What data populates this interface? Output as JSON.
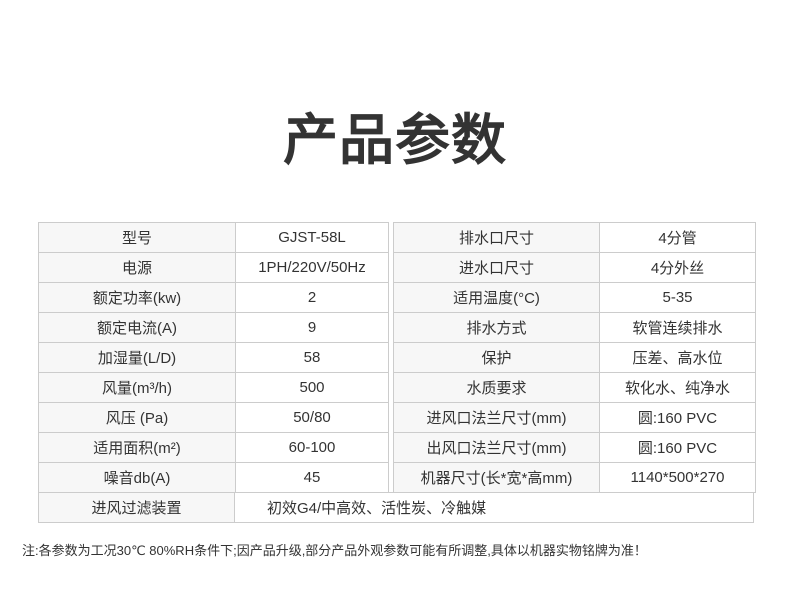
{
  "page": {
    "title": "产品参数",
    "note": "注:各参数为工况30℃  80%RH条件下;因产品升级,部分产品外观参数可能有所调整,具体以机器实物铭牌为准！"
  },
  "colors": {
    "border": "#cccccc",
    "label_cell_bg": "#f7f7f7",
    "text": "#333333"
  },
  "spec_table": {
    "left_rows": [
      {
        "label": "型号",
        "value": "GJST-58L"
      },
      {
        "label": "电源",
        "value": "1PH/220V/50Hz"
      },
      {
        "label": "额定功率(kw)",
        "value": "2"
      },
      {
        "label": "额定电流(A)",
        "value": "9"
      },
      {
        "label": "加湿量(L/D)",
        "value": "58"
      },
      {
        "label": "风量(m³/h)",
        "value": "500"
      },
      {
        "label": "风压 (Pa)",
        "value": "50/80"
      },
      {
        "label": "适用面积(m²)",
        "value": "60-100"
      },
      {
        "label": "噪音db(A)",
        "value": "45"
      }
    ],
    "right_rows": [
      {
        "label": "排水口尺寸",
        "value": "4分管"
      },
      {
        "label": "进水口尺寸",
        "value": "4分外丝"
      },
      {
        "label": "适用温度(°C)",
        "value": "5-35"
      },
      {
        "label": "排水方式",
        "value": "软管连续排水"
      },
      {
        "label": "保护",
        "value": "压差、高水位"
      },
      {
        "label": "水质要求",
        "value": "软化水、纯净水"
      },
      {
        "label": "进风口法兰尺寸(mm)",
        "value": "圆:160 PVC"
      },
      {
        "label": "出风口法兰尺寸(mm)",
        "value": "圆:160 PVC"
      },
      {
        "label": "机器尺寸(长*宽*高mm)",
        "value": "1140*500*270"
      }
    ],
    "bottom_row": {
      "label": "进风过滤装置",
      "value": "初效G4/中高效、活性炭、冷触媒"
    }
  }
}
